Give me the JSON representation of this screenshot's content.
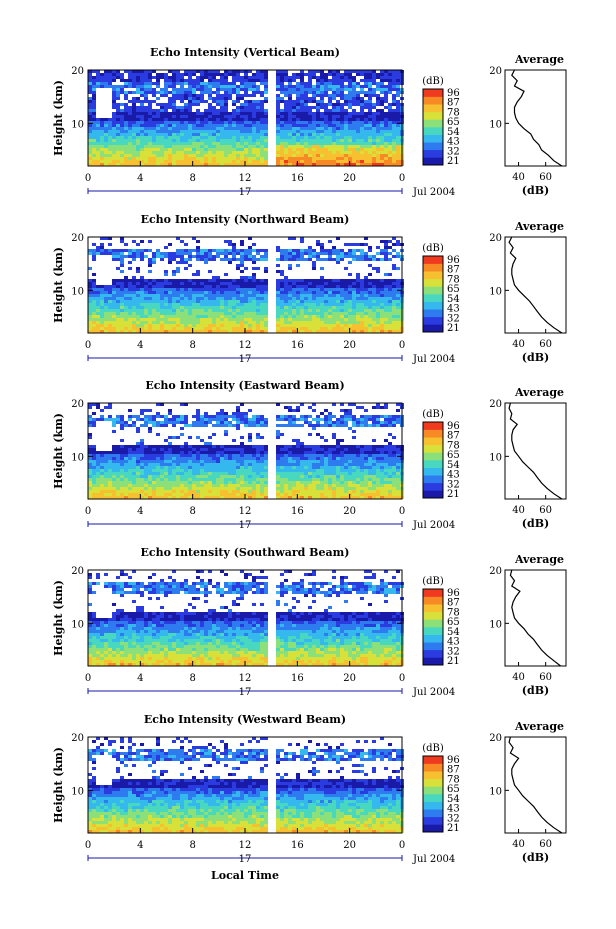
{
  "figure": {
    "xlabel": "Local Time",
    "date_label": "Jul 2004",
    "day_label": "17",
    "colorbar_unit": "(dB)",
    "colorbar_ticks": [
      "96",
      "87",
      "78",
      "65",
      "54",
      "43",
      "32",
      "21"
    ],
    "colors": [
      "#1a1aa8",
      "#2a3be0",
      "#2e7bf0",
      "#35b8ee",
      "#48d8c0",
      "#8ce07a",
      "#d8e03a",
      "#f7c030",
      "#f78a25",
      "#f03a20"
    ]
  },
  "chart_data": [
    {
      "type": "heatmap",
      "title": "Echo Intensity (Vertical Beam)",
      "ylabel": "Height (km)",
      "xlim": [
        0,
        24
      ],
      "ylim": [
        2,
        20
      ],
      "xticks": [
        "0",
        "4",
        "8",
        "12",
        "16",
        "20",
        "0"
      ],
      "yticks": [
        "20",
        "10"
      ],
      "colorbar_ticks": [
        "96",
        "87",
        "78",
        "65",
        "54",
        "43",
        "32",
        "21"
      ],
      "average_profile": {
        "title": "Average",
        "xlabel": "(dB)",
        "xticks": [
          "40",
          "60"
        ],
        "yticks": [
          "20",
          "10"
        ],
        "xlim": [
          30,
          75
        ],
        "ylim": [
          2,
          20
        ],
        "height_km": [
          2,
          3,
          4,
          5,
          6,
          7,
          8,
          9,
          10,
          11,
          12,
          13,
          14,
          15,
          16,
          17,
          18,
          19,
          20
        ],
        "db": [
          72,
          66,
          62,
          57,
          55,
          51,
          49,
          44,
          40,
          38,
          37,
          37,
          39,
          42,
          44,
          37,
          39,
          35,
          37
        ]
      }
    },
    {
      "type": "heatmap",
      "title": "Echo Intensity (Northward Beam)",
      "ylabel": "Height (km)",
      "xlim": [
        0,
        24
      ],
      "ylim": [
        2,
        20
      ],
      "xticks": [
        "0",
        "4",
        "8",
        "12",
        "16",
        "20",
        "0"
      ],
      "yticks": [
        "20",
        "10"
      ],
      "colorbar_ticks": [
        "96",
        "87",
        "78",
        "65",
        "54",
        "43",
        "32",
        "21"
      ],
      "average_profile": {
        "title": "Average",
        "xlabel": "(dB)",
        "xticks": [
          "40",
          "60"
        ],
        "yticks": [
          "20",
          "10"
        ],
        "xlim": [
          30,
          75
        ],
        "ylim": [
          2,
          20
        ],
        "height_km": [
          2,
          3,
          4,
          5,
          6,
          7,
          8,
          9,
          10,
          11,
          12,
          13,
          14,
          15,
          16,
          17,
          18,
          19,
          20
        ],
        "db": [
          72,
          66,
          61,
          57,
          54,
          51,
          48,
          44,
          40,
          37,
          36,
          35,
          35,
          36,
          38,
          34,
          36,
          33,
          35
        ]
      }
    },
    {
      "type": "heatmap",
      "title": "Echo Intensity (Eastward Beam)",
      "ylabel": "Height (km)",
      "xlim": [
        0,
        24
      ],
      "ylim": [
        2,
        20
      ],
      "xticks": [
        "0",
        "4",
        "8",
        "12",
        "16",
        "20",
        "0"
      ],
      "yticks": [
        "20",
        "10"
      ],
      "colorbar_ticks": [
        "96",
        "87",
        "78",
        "65",
        "54",
        "43",
        "32",
        "21"
      ],
      "average_profile": {
        "title": "Average",
        "xlabel": "(dB)",
        "xticks": [
          "40",
          "60"
        ],
        "yticks": [
          "20",
          "10"
        ],
        "xlim": [
          30,
          75
        ],
        "ylim": [
          2,
          20
        ],
        "height_km": [
          2,
          3,
          4,
          5,
          6,
          7,
          8,
          9,
          10,
          11,
          12,
          13,
          14,
          15,
          16,
          17,
          18,
          19,
          20
        ],
        "db": [
          72,
          66,
          61,
          57,
          54,
          51,
          47,
          43,
          40,
          37,
          36,
          35,
          35,
          36,
          39,
          34,
          35,
          33,
          34
        ]
      }
    },
    {
      "type": "heatmap",
      "title": "Echo Intensity (Southward Beam)",
      "ylabel": "Height (km)",
      "xlim": [
        0,
        24
      ],
      "ylim": [
        2,
        20
      ],
      "xticks": [
        "0",
        "4",
        "8",
        "12",
        "16",
        "20",
        "0"
      ],
      "yticks": [
        "20",
        "10"
      ],
      "colorbar_ticks": [
        "96",
        "87",
        "78",
        "65",
        "54",
        "43",
        "32",
        "21"
      ],
      "average_profile": {
        "title": "Average",
        "xlabel": "(dB)",
        "xticks": [
          "40",
          "60"
        ],
        "yticks": [
          "20",
          "10"
        ],
        "xlim": [
          30,
          75
        ],
        "ylim": [
          2,
          20
        ],
        "height_km": [
          2,
          3,
          4,
          5,
          6,
          7,
          8,
          9,
          10,
          11,
          12,
          13,
          14,
          15,
          16,
          17,
          18,
          19,
          20
        ],
        "db": [
          71,
          66,
          61,
          57,
          54,
          51,
          47,
          44,
          40,
          37,
          36,
          35,
          36,
          38,
          41,
          35,
          37,
          34,
          35
        ]
      }
    },
    {
      "type": "heatmap",
      "title": "Echo Intensity (Westward Beam)",
      "ylabel": "Height (km)",
      "xlim": [
        0,
        24
      ],
      "ylim": [
        2,
        20
      ],
      "xticks": [
        "0",
        "4",
        "8",
        "12",
        "16",
        "20",
        "0"
      ],
      "yticks": [
        "20",
        "10"
      ],
      "colorbar_ticks": [
        "96",
        "87",
        "78",
        "65",
        "54",
        "43",
        "32",
        "21"
      ],
      "average_profile": {
        "title": "Average",
        "xlabel": "(dB)",
        "xticks": [
          "40",
          "60"
        ],
        "yticks": [
          "20",
          "10"
        ],
        "xlim": [
          30,
          75
        ],
        "ylim": [
          2,
          20
        ],
        "height_km": [
          2,
          3,
          4,
          5,
          6,
          7,
          8,
          9,
          10,
          11,
          12,
          13,
          14,
          15,
          16,
          17,
          18,
          19,
          20
        ],
        "db": [
          72,
          66,
          61,
          57,
          54,
          51,
          47,
          43,
          40,
          37,
          36,
          35,
          35,
          37,
          40,
          34,
          36,
          33,
          34
        ]
      }
    }
  ]
}
